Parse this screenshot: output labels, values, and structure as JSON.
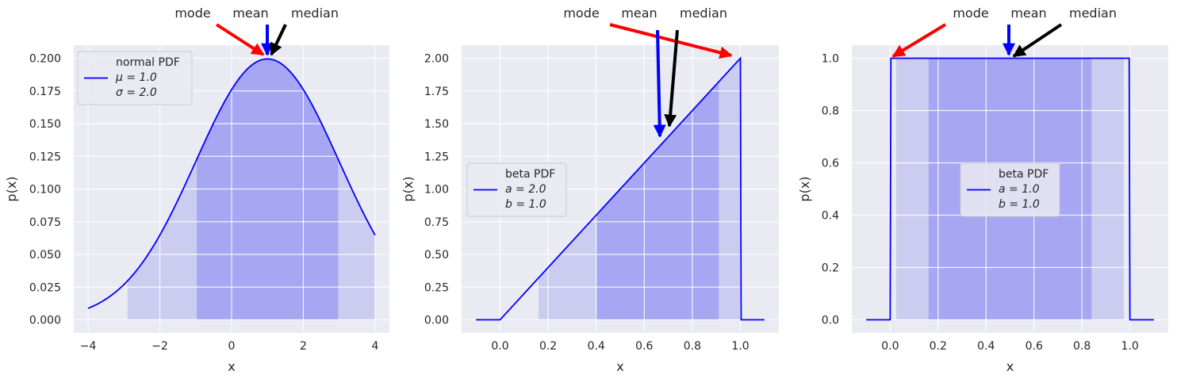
{
  "colors": {
    "background": "#eaeaf2",
    "grid": "#ffffff",
    "pdf_line": "#0000ff",
    "fill_outer": "#ccccf0",
    "fill_inner": "#a6a6f2",
    "mode_arrow": "#ff0000",
    "mean_arrow": "#0000ff",
    "median_arrow": "#000000"
  },
  "chart_data": [
    {
      "type": "line",
      "distribution": "normal",
      "params": {
        "mu": 1.0,
        "sigma": 2.0
      },
      "x_range": [
        -4,
        4
      ],
      "xlim": [
        -4.4,
        4.4
      ],
      "ylim": [
        -0.01,
        0.21
      ],
      "xticks": [
        -4,
        -2,
        0,
        2,
        4
      ],
      "xtick_labels": [
        "−4",
        "−2",
        "0",
        "2",
        "4"
      ],
      "yticks": [
        0,
        0.025,
        0.05,
        0.075,
        0.1,
        0.125,
        0.15,
        0.175,
        0.2
      ],
      "ytick_labels": [
        "0.000",
        "0.025",
        "0.050",
        "0.075",
        "0.100",
        "0.125",
        "0.150",
        "0.175",
        "0.200"
      ],
      "xlabel": "x",
      "ylabel": "p(x)",
      "outer_interval": [
        -2.9,
        4.0
      ],
      "inner_interval": [
        -0.97,
        2.97
      ],
      "stats": {
        "mode": 1.0,
        "mean": 1.0,
        "median": 1.0
      },
      "legend": {
        "position": "upper-left",
        "lines": [
          "normal PDF",
          "μ = 1.0",
          "σ = 2.0"
        ]
      },
      "annotations": [
        "mode",
        "mean",
        "median"
      ]
    },
    {
      "type": "line",
      "distribution": "beta",
      "params": {
        "a": 2.0,
        "b": 1.0
      },
      "x_range": [
        -0.1,
        1.1
      ],
      "xlim": [
        -0.16,
        1.16
      ],
      "ylim": [
        -0.1,
        2.1
      ],
      "xticks": [
        0,
        0.2,
        0.4,
        0.6,
        0.8,
        1.0
      ],
      "xtick_labels": [
        "0.0",
        "0.2",
        "0.4",
        "0.6",
        "0.8",
        "1.0"
      ],
      "yticks": [
        0,
        0.25,
        0.5,
        0.75,
        1.0,
        1.25,
        1.5,
        1.75,
        2.0
      ],
      "ytick_labels": [
        "0.00",
        "0.25",
        "0.50",
        "0.75",
        "1.00",
        "1.25",
        "1.50",
        "1.75",
        "2.00"
      ],
      "xlabel": "x",
      "ylabel": "p(x)",
      "outer_interval": [
        0.16,
        1.0
      ],
      "inner_interval": [
        0.4,
        0.91
      ],
      "stats": {
        "mode": 1.0,
        "mean": 0.667,
        "median": 0.707
      },
      "legend": {
        "position": "center-left",
        "lines": [
          "beta PDF",
          "a = 2.0",
          "b = 1.0"
        ]
      },
      "annotations": [
        "mode",
        "mean",
        "median"
      ]
    },
    {
      "type": "line",
      "distribution": "beta",
      "params": {
        "a": 1.0,
        "b": 1.0
      },
      "x_range": [
        -0.1,
        1.1
      ],
      "xlim": [
        -0.16,
        1.16
      ],
      "ylim": [
        -0.05,
        1.05
      ],
      "xticks": [
        0,
        0.2,
        0.4,
        0.6,
        0.8,
        1.0
      ],
      "xtick_labels": [
        "0.0",
        "0.2",
        "0.4",
        "0.6",
        "0.8",
        "1.0"
      ],
      "yticks": [
        0,
        0.2,
        0.4,
        0.6,
        0.8,
        1.0
      ],
      "ytick_labels": [
        "0.0",
        "0.2",
        "0.4",
        "0.6",
        "0.8",
        "1.0"
      ],
      "xlabel": "x",
      "ylabel": "p(x)",
      "outer_interval": [
        0.025,
        0.975
      ],
      "inner_interval": [
        0.16,
        0.84
      ],
      "stats": {
        "mode": 0.0,
        "mean": 0.5,
        "median": 0.5
      },
      "legend": {
        "position": "center",
        "lines": [
          "beta PDF",
          "a = 1.0",
          "b = 1.0"
        ]
      },
      "annotations": [
        "mode",
        "mean",
        "median"
      ]
    }
  ]
}
